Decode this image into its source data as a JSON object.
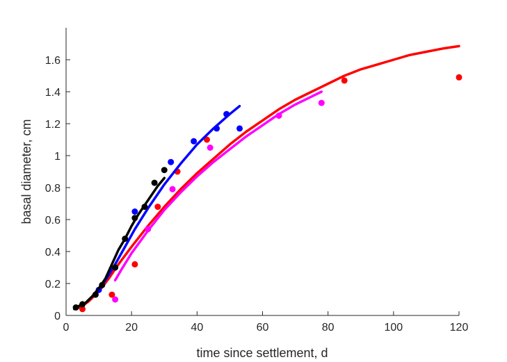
{
  "chart_data": {
    "type": "scatter",
    "title": "",
    "xlabel": "time since settlement, d",
    "ylabel": "basal diameter, cm",
    "xlim": [
      0,
      120
    ],
    "ylim": [
      0,
      1.8
    ],
    "xticks": [
      0,
      20,
      40,
      60,
      80,
      100,
      120
    ],
    "xtick_labels": [
      "0",
      "20",
      "40",
      "60",
      "80",
      "100",
      "120"
    ],
    "yticks": [
      0,
      0.2,
      0.4,
      0.6,
      0.8,
      1.0,
      1.2,
      1.4,
      1.6
    ],
    "ytick_labels": [
      "0",
      "0.2",
      "0.4",
      "0.6",
      "0.8",
      "1",
      "1.2",
      "1.4",
      "1.6"
    ],
    "grid": false,
    "series": [
      {
        "color": "#ff0000",
        "points": {
          "x": [
            5,
            14,
            21,
            28,
            34,
            43,
            49,
            85,
            120
          ],
          "y": [
            0.04,
            0.13,
            0.32,
            0.68,
            0.9,
            1.1,
            1.26,
            1.47,
            1.49
          ]
        },
        "curve": {
          "x": [
            3,
            5,
            7,
            10,
            13,
            16,
            20,
            25,
            30,
            35,
            40,
            45,
            50,
            55,
            60,
            65,
            70,
            75,
            80,
            85,
            90,
            95,
            100,
            105,
            110,
            115,
            120
          ],
          "y": [
            0.04,
            0.06,
            0.09,
            0.15,
            0.23,
            0.32,
            0.43,
            0.56,
            0.68,
            0.79,
            0.89,
            0.98,
            1.07,
            1.15,
            1.22,
            1.29,
            1.35,
            1.4,
            1.45,
            1.5,
            1.54,
            1.57,
            1.6,
            1.63,
            1.65,
            1.67,
            1.685
          ]
        }
      },
      {
        "color": "#ff00ff",
        "points": {
          "x": [
            15,
            25,
            32.5,
            44,
            65,
            78
          ],
          "y": [
            0.1,
            0.54,
            0.79,
            1.05,
            1.25,
            1.33
          ]
        },
        "curve": {
          "x": [
            15,
            17,
            20,
            25,
            30,
            35,
            40,
            45,
            50,
            55,
            60,
            65,
            70,
            75,
            78
          ],
          "y": [
            0.22,
            0.29,
            0.39,
            0.53,
            0.66,
            0.77,
            0.87,
            0.96,
            1.04,
            1.12,
            1.19,
            1.26,
            1.32,
            1.37,
            1.4
          ]
        }
      },
      {
        "color": "#0000ff",
        "points": {
          "x": [
            10,
            15,
            21,
            32,
            39,
            46,
            49,
            53
          ],
          "y": [
            0.16,
            0.3,
            0.65,
            0.96,
            1.09,
            1.17,
            1.26,
            1.17
          ]
        },
        "curve": {
          "x": [
            10,
            12,
            15,
            18,
            21,
            25,
            30,
            35,
            40,
            45,
            50,
            53
          ],
          "y": [
            0.16,
            0.22,
            0.32,
            0.43,
            0.54,
            0.67,
            0.82,
            0.95,
            1.07,
            1.17,
            1.26,
            1.31
          ]
        }
      },
      {
        "color": "#000000",
        "points": {
          "x": [
            3,
            5,
            9,
            11,
            15,
            18,
            21,
            24,
            27,
            30
          ],
          "y": [
            0.05,
            0.07,
            0.13,
            0.19,
            0.3,
            0.48,
            0.61,
            0.68,
            0.83,
            0.91
          ]
        },
        "curve": {
          "x": [
            2.5,
            4,
            6,
            8,
            10,
            12,
            14,
            16,
            18,
            20,
            22,
            24,
            26,
            28,
            30
          ],
          "y": [
            0.04,
            0.06,
            0.08,
            0.12,
            0.17,
            0.23,
            0.32,
            0.41,
            0.48,
            0.56,
            0.63,
            0.69,
            0.75,
            0.81,
            0.86
          ]
        }
      }
    ]
  }
}
